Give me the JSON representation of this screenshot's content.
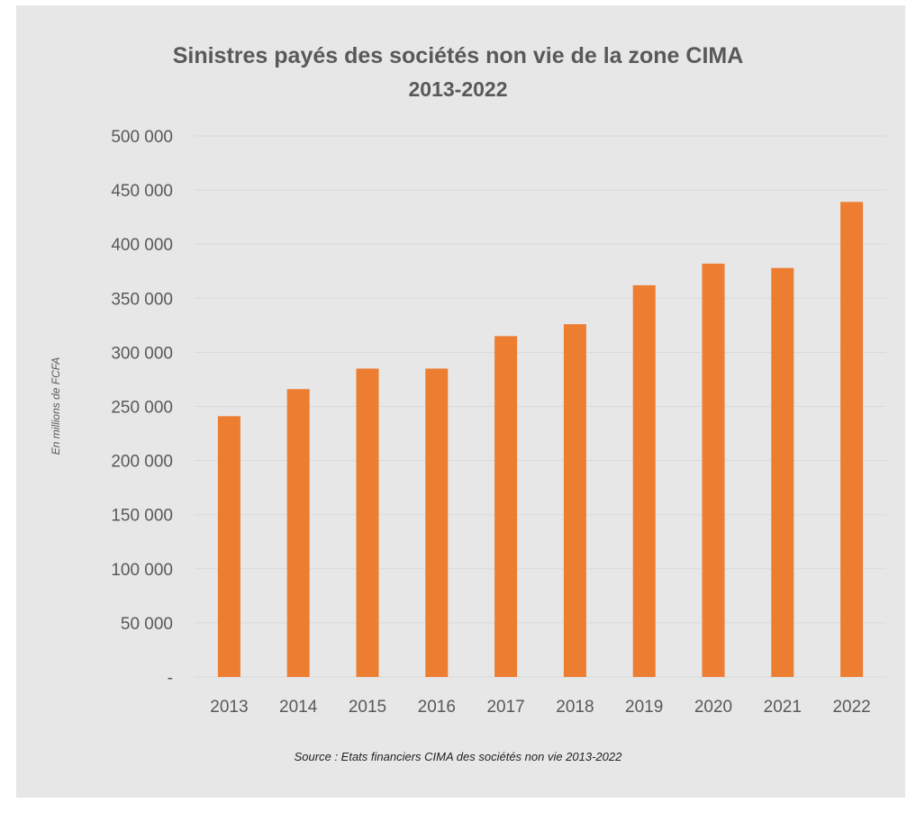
{
  "chart_data": {
    "type": "bar",
    "title": "Sinistres payés des sociétés non vie de la zone CIMA",
    "subtitle": "2013-2022",
    "ylabel": "En millions de FCFA",
    "xlabel": "",
    "categories": [
      "2013",
      "2014",
      "2015",
      "2016",
      "2017",
      "2018",
      "2019",
      "2020",
      "2021",
      "2022"
    ],
    "values": [
      241000,
      266000,
      285000,
      285000,
      315000,
      326000,
      362000,
      382000,
      378000,
      439000
    ],
    "ylim": [
      0,
      500000
    ],
    "yticks": [
      0,
      50000,
      100000,
      150000,
      200000,
      250000,
      300000,
      350000,
      400000,
      450000,
      500000
    ],
    "ytick_labels": [
      "-",
      "50 000",
      "100 000",
      "150 000",
      "200 000",
      "250 000",
      "300 000",
      "350 000",
      "400 000",
      "450 000",
      "500 000"
    ],
    "grid": true,
    "legend": "none",
    "bar_color": "#ed7d31",
    "source": "Source : Etats financiers CIMA des sociétés non vie 2013-2022"
  }
}
